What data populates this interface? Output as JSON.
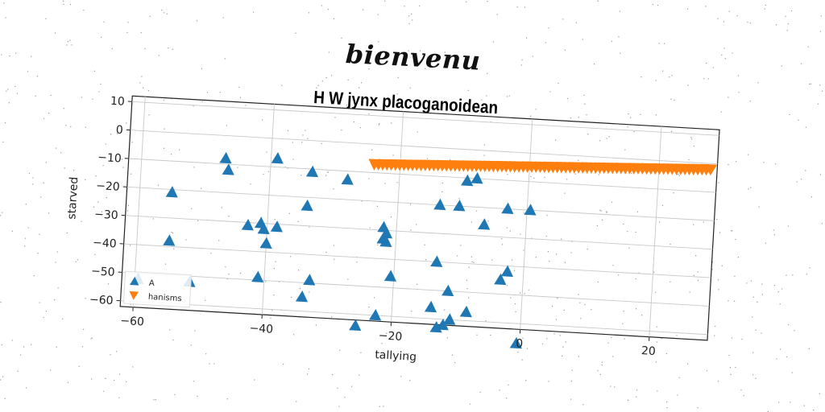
{
  "page": {
    "title": "bienvenu"
  },
  "chart_data": {
    "type": "scatter",
    "title": "H W jynx placoganoidean",
    "xlabel": "tallying",
    "ylabel": "starved",
    "xlim": [
      -62,
      29
    ],
    "ylim": [
      -62,
      12
    ],
    "grid": true,
    "legend_position": "bottom-left",
    "xticks": [
      -60,
      -40,
      -20,
      0,
      20
    ],
    "xtick_labels": [
      "−60",
      "−40",
      "−20",
      "0",
      "20"
    ],
    "yticks": [
      10,
      0,
      -10,
      -20,
      -30,
      -40,
      -50,
      -60
    ],
    "ytick_labels": [
      "10",
      "0",
      "−10",
      "−20",
      "−30",
      "−40",
      "−50",
      "−60"
    ],
    "series": [
      {
        "name": "A",
        "marker": "triangle-up",
        "color": "#1f77b4",
        "points": [
          [
            -47,
            -8
          ],
          [
            -46.5,
            -12
          ],
          [
            -39,
            -7
          ],
          [
            -33.5,
            -11
          ],
          [
            -28,
            -13
          ],
          [
            -55,
            -21
          ],
          [
            -34,
            -23
          ],
          [
            -43,
            -31
          ],
          [
            -41,
            -30
          ],
          [
            -40.5,
            -32
          ],
          [
            -38.5,
            -31
          ],
          [
            -40,
            -37
          ],
          [
            -55,
            -38
          ],
          [
            -41,
            -49
          ],
          [
            -33,
            -49
          ],
          [
            -34,
            -55
          ],
          [
            -22,
            -29
          ],
          [
            -22,
            -33
          ],
          [
            -21.5,
            -31
          ],
          [
            -21.5,
            -34
          ],
          [
            -20.5,
            -46
          ],
          [
            -22.5,
            -60
          ],
          [
            -25.5,
            -64
          ],
          [
            -13.5,
            -20
          ],
          [
            -10.5,
            -20
          ],
          [
            -9.5,
            -11
          ],
          [
            -8,
            -10
          ],
          [
            -6.5,
            -26
          ],
          [
            -3,
            -20
          ],
          [
            0.5,
            -20
          ],
          [
            -13.5,
            -40
          ],
          [
            -11.5,
            -50
          ],
          [
            -2.5,
            -42
          ],
          [
            -3.5,
            -45
          ],
          [
            -14,
            -56
          ],
          [
            -12,
            -62
          ],
          [
            -11,
            -60
          ],
          [
            -13,
            -63
          ],
          [
            -8.5,
            -57
          ],
          [
            -0.5,
            -67
          ],
          [
            -59.5,
            -52
          ],
          [
            -51.5,
            -52
          ]
        ]
      },
      {
        "name": "hanisms",
        "marker": "triangle-down",
        "color": "#ff7f0e",
        "x_range": [
          -24,
          28
        ],
        "y_range": [
          -7,
          -2
        ],
        "count": 80
      }
    ]
  }
}
